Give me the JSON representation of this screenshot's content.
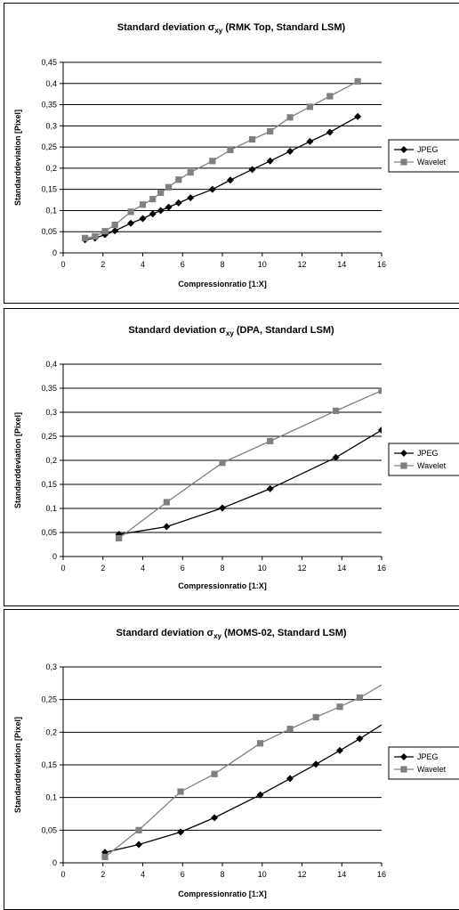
{
  "legend_labels": [
    "JPEG",
    "Wavelet"
  ],
  "colors": {
    "jpeg": "#000000",
    "wavelet": "#808080",
    "grid": "#000000",
    "plot_bg": "#ffffff"
  },
  "chart_data": [
    {
      "type": "line",
      "title_main": "Standard deviation σ",
      "title_sub": "xy",
      "title_rest": " (RMK Top, Standard LSM)",
      "xlabel": "Compressionratio [1:X]",
      "ylabel": "Standarddeviation [Pixel]",
      "xlim": [
        0,
        16
      ],
      "ylim": [
        0,
        0.45
      ],
      "xticks": [
        "0",
        "2",
        "4",
        "6",
        "8",
        "10",
        "12",
        "14",
        "16"
      ],
      "yticks": [
        "0",
        "0,05",
        "0,1",
        "0,15",
        "0,2",
        "0,25",
        "0,3",
        "0,35",
        "0,4",
        "0,45"
      ],
      "grid": "horizontal",
      "legend_position": "right",
      "series": [
        {
          "name": "JPEG",
          "marker": "diamond",
          "x": [
            1.1,
            1.6,
            2.1,
            2.6,
            3.4,
            4.0,
            4.5,
            4.9,
            5.3,
            5.8,
            6.4,
            7.5,
            8.4,
            9.5,
            10.4,
            11.4,
            12.4,
            13.4,
            14.8
          ],
          "y": [
            0.031,
            0.035,
            0.043,
            0.052,
            0.07,
            0.081,
            0.092,
            0.1,
            0.108,
            0.118,
            0.13,
            0.15,
            0.172,
            0.197,
            0.217,
            0.24,
            0.263,
            0.285,
            0.322
          ]
        },
        {
          "name": "Wavelet",
          "marker": "square",
          "x": [
            1.1,
            1.6,
            2.1,
            2.6,
            3.4,
            4.0,
            4.5,
            4.9,
            5.3,
            5.8,
            6.4,
            7.5,
            8.4,
            9.5,
            10.4,
            11.4,
            12.4,
            13.4,
            14.8
          ],
          "y": [
            0.035,
            0.039,
            0.051,
            0.066,
            0.097,
            0.114,
            0.127,
            0.142,
            0.155,
            0.173,
            0.19,
            0.217,
            0.243,
            0.268,
            0.287,
            0.32,
            0.345,
            0.37,
            0.405
          ]
        }
      ]
    },
    {
      "type": "line",
      "title_main": "Standard deviation σ",
      "title_sub": "xy",
      "title_rest": " (DPA, Standard LSM)",
      "xlabel": "Compressionratio [1:X]",
      "ylabel": "Standarddeviation [Pixel]",
      "xlim": [
        0,
        16
      ],
      "ylim": [
        0,
        0.4
      ],
      "xticks": [
        "0",
        "2",
        "4",
        "6",
        "8",
        "10",
        "12",
        "14",
        "16"
      ],
      "yticks": [
        "0",
        "0,05",
        "0,1",
        "0,15",
        "0,2",
        "0,25",
        "0,3",
        "0,35",
        "0,4"
      ],
      "grid": "horizontal",
      "legend_position": "right",
      "series": [
        {
          "name": "JPEG",
          "marker": "diamond",
          "x": [
            2.8,
            5.2,
            8.0,
            10.4,
            13.7,
            16.0
          ],
          "y": [
            0.046,
            0.062,
            0.101,
            0.141,
            0.206,
            0.263
          ]
        },
        {
          "name": "Wavelet",
          "marker": "square",
          "x": [
            2.8,
            5.2,
            8.0,
            10.4,
            13.7,
            16.0
          ],
          "y": [
            0.038,
            0.113,
            0.195,
            0.24,
            0.303,
            0.345
          ]
        }
      ]
    },
    {
      "type": "line",
      "title_main": "Standard deviation σ",
      "title_sub": "xy",
      "title_rest": " (MOMS-02, Standard LSM)",
      "xlabel": "Compressionratio [1:X]",
      "ylabel": "Standarddeviation [Pixel]",
      "xlim": [
        0,
        16
      ],
      "ylim": [
        0,
        0.3
      ],
      "xticks": [
        "0",
        "2",
        "4",
        "6",
        "8",
        "10",
        "12",
        "14",
        "16"
      ],
      "yticks": [
        "0",
        "0,05",
        "0,1",
        "0,15",
        "0,2",
        "0,25",
        "0,3"
      ],
      "grid": "horizontal",
      "legend_position": "right",
      "series": [
        {
          "name": "JPEG",
          "marker": "diamond",
          "x": [
            2.1,
            3.8,
            5.9,
            7.6,
            9.9,
            11.4,
            12.7,
            13.9,
            14.9,
            16.2
          ],
          "y": [
            0.016,
            0.028,
            0.047,
            0.069,
            0.104,
            0.129,
            0.151,
            0.172,
            0.19,
            0.215
          ]
        },
        {
          "name": "Wavelet",
          "marker": "square",
          "x": [
            2.1,
            3.8,
            5.9,
            7.6,
            9.9,
            11.4,
            12.7,
            13.9,
            14.9,
            16.2
          ],
          "y": [
            0.009,
            0.05,
            0.109,
            0.136,
            0.183,
            0.205,
            0.223,
            0.239,
            0.253,
            0.276
          ]
        }
      ]
    }
  ]
}
